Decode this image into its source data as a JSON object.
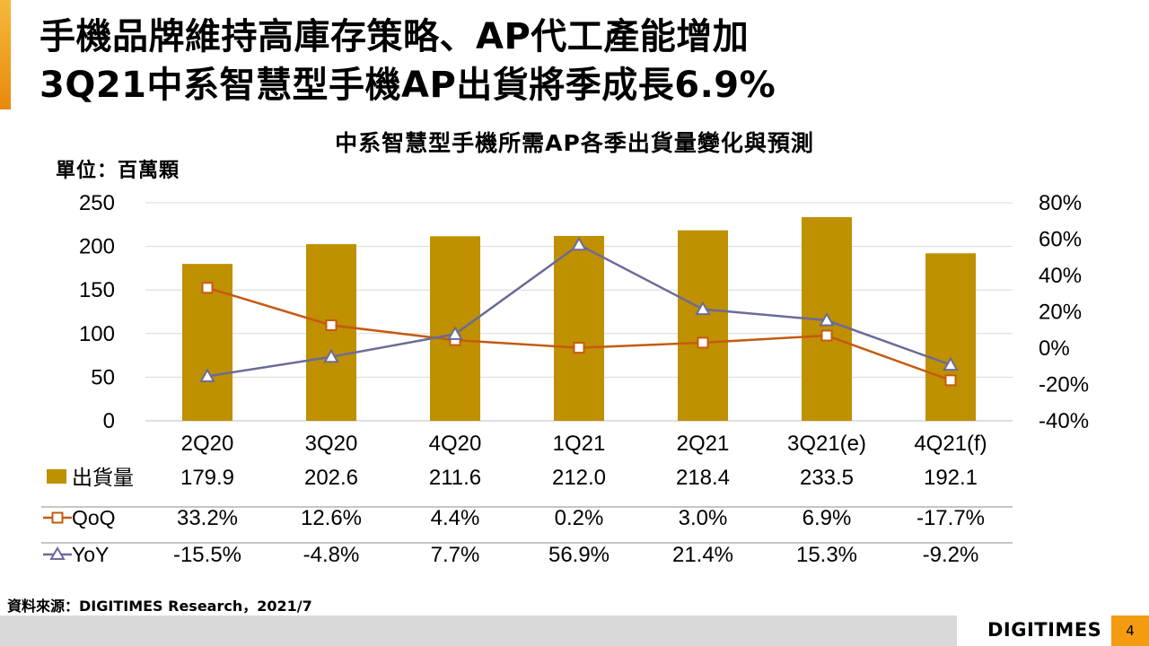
{
  "slide": {
    "title_line1": "手機品牌維持高庫存策略、AP代工產能增加",
    "title_line2": "3Q21中系智慧型手機AP出貨將季成長6.9%",
    "source": "資料來源：DIGITIMES Research，2021/7",
    "logo": "DIGITIMES",
    "page_number": "4"
  },
  "colors": {
    "bar": "#bf9000",
    "qoq": "#c55a11",
    "yoy": "#6b6b99",
    "accent": "#f39c12",
    "footer_band": "#d9d9d9"
  },
  "chart_data": {
    "type": "bar",
    "title": "中系智慧型手機所需AP各季出貨量變化與預測",
    "unit_label": "單位：百萬顆",
    "categories": [
      "2Q20",
      "3Q20",
      "4Q20",
      "1Q21",
      "2Q21",
      "3Q21(e)",
      "4Q21(f)"
    ],
    "y_left": {
      "ticks": [
        "0",
        "50",
        "100",
        "150",
        "200",
        "250"
      ],
      "ylim": [
        0,
        250
      ]
    },
    "y_right": {
      "ticks": [
        "-40%",
        "-20%",
        "0%",
        "20%",
        "40%",
        "60%",
        "80%"
      ],
      "ylim": [
        -40,
        80
      ]
    },
    "grid": true,
    "series": [
      {
        "name": "出貨量",
        "type": "bar",
        "axis": "left",
        "values": [
          179.9,
          202.6,
          211.6,
          212.0,
          218.4,
          233.5,
          192.1
        ],
        "labels": [
          "179.9",
          "202.6",
          "211.6",
          "212.0",
          "218.4",
          "233.5",
          "192.1"
        ]
      },
      {
        "name": "QoQ",
        "type": "line",
        "axis": "right",
        "marker": "square",
        "values": [
          33.2,
          12.6,
          4.4,
          0.2,
          3.0,
          6.9,
          -17.7
        ],
        "labels": [
          "33.2%",
          "12.6%",
          "4.4%",
          "0.2%",
          "3.0%",
          "6.9%",
          "-17.7%"
        ]
      },
      {
        "name": "YoY",
        "type": "line",
        "axis": "right",
        "marker": "triangle",
        "values": [
          -15.5,
          -4.8,
          7.7,
          56.9,
          21.4,
          15.3,
          -9.2
        ],
        "labels": [
          "-15.5%",
          "-4.8%",
          "7.7%",
          "56.9%",
          "21.4%",
          "15.3%",
          "-9.2%"
        ]
      }
    ]
  }
}
